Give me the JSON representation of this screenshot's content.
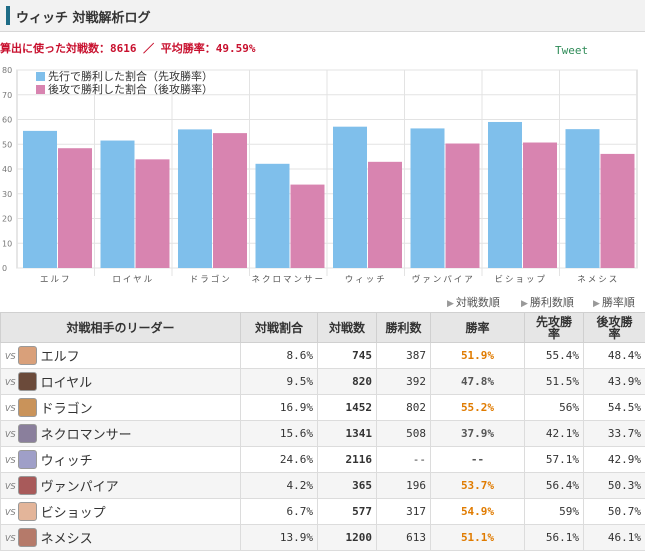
{
  "header": {
    "title": "ウィッチ 対戦解析ログ"
  },
  "summary": {
    "text": "算出に使った対戦数：8616 ／ 平均勝率：49.59%"
  },
  "tweet_label": "Tweet",
  "chart_data": {
    "type": "bar",
    "categories": [
      "エルフ",
      "ロイヤル",
      "ドラゴン",
      "ネクロマンサー",
      "ウィッチ",
      "ヴァンパイア",
      "ビショップ",
      "ネメシス"
    ],
    "series": [
      {
        "name": "先行で勝利した割合（先攻勝率）",
        "color": "#7fbfeb",
        "values": [
          55.4,
          51.5,
          56,
          42.1,
          57.1,
          56.4,
          59,
          56.1
        ]
      },
      {
        "name": "後攻で勝利した割合（後攻勝率）",
        "color": "#d884b0",
        "values": [
          48.4,
          43.9,
          54.5,
          33.7,
          42.9,
          50.3,
          50.7,
          46.1
        ]
      }
    ],
    "ylim": [
      0,
      80
    ],
    "yticks": [
      0,
      10,
      20,
      30,
      40,
      50,
      60,
      70,
      80
    ],
    "legend": "top-left",
    "grid": true
  },
  "sort": {
    "by_battles": "対戦数順",
    "by_wins": "勝利数順",
    "by_rate": "勝率順"
  },
  "table": {
    "headers": {
      "leader": "対戦相手のリーダー",
      "share": "対戦割合",
      "battles": "対戦数",
      "wins": "勝利数",
      "rate": "勝率",
      "first": "先攻勝率",
      "second": "後攻勝率"
    },
    "vs_label": "VS",
    "rows": [
      {
        "leader": "エルフ",
        "share": "8.6%",
        "battles": "745",
        "wins": "387",
        "rate": "51.9%",
        "first": "55.4%",
        "second": "48.4%",
        "rate_high": true,
        "avatar": "#d9a07a"
      },
      {
        "leader": "ロイヤル",
        "share": "9.5%",
        "battles": "820",
        "wins": "392",
        "rate": "47.8%",
        "first": "51.5%",
        "second": "43.9%",
        "rate_high": false,
        "avatar": "#6b4a3a"
      },
      {
        "leader": "ドラゴン",
        "share": "16.9%",
        "battles": "1452",
        "wins": "802",
        "rate": "55.2%",
        "first": "56%",
        "second": "54.5%",
        "rate_high": true,
        "avatar": "#c9935a"
      },
      {
        "leader": "ネクロマンサー",
        "share": "15.6%",
        "battles": "1341",
        "wins": "508",
        "rate": "37.9%",
        "first": "42.1%",
        "second": "33.7%",
        "rate_high": false,
        "avatar": "#8a7f9c"
      },
      {
        "leader": "ウィッチ",
        "share": "24.6%",
        "battles": "2116",
        "wins": "--",
        "rate": "--",
        "first": "57.1%",
        "second": "42.9%",
        "rate_high": false,
        "avatar": "#9f9fc8"
      },
      {
        "leader": "ヴァンパイア",
        "share": "4.2%",
        "battles": "365",
        "wins": "196",
        "rate": "53.7%",
        "first": "56.4%",
        "second": "50.3%",
        "rate_high": true,
        "avatar": "#a85a5a"
      },
      {
        "leader": "ビショップ",
        "share": "6.7%",
        "battles": "577",
        "wins": "317",
        "rate": "54.9%",
        "first": "59%",
        "second": "50.7%",
        "rate_high": true,
        "avatar": "#e3b59a"
      },
      {
        "leader": "ネメシス",
        "share": "13.9%",
        "battles": "1200",
        "wins": "613",
        "rate": "51.1%",
        "first": "56.1%",
        "second": "46.1%",
        "rate_high": true,
        "avatar": "#b57a6a"
      }
    ]
  }
}
